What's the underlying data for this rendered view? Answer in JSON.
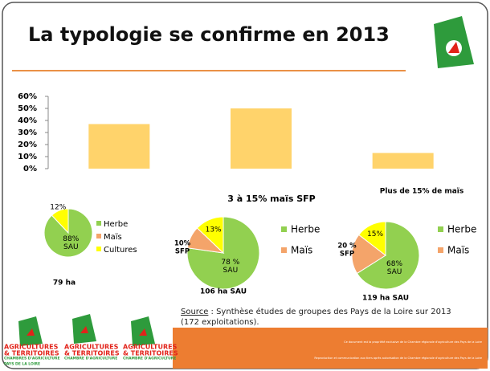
{
  "header": {
    "title": "La typologie se confirme en 2013"
  },
  "chart_data": [
    {
      "type": "bar",
      "values": [
        37,
        50,
        13
      ],
      "color": "#ffd36b",
      "ylim": [
        0,
        60
      ],
      "yticks": [
        {
          "value": 0,
          "label": "0%"
        },
        {
          "value": 10,
          "label": "10%"
        },
        {
          "value": 20,
          "label": "20%"
        },
        {
          "value": 30,
          "label": "30%"
        },
        {
          "value": 40,
          "label": "40%"
        },
        {
          "value": 50,
          "label": "50%"
        },
        {
          "value": 60,
          "label": "60%"
        }
      ]
    },
    {
      "type": "pie",
      "caption": "79 ha",
      "legend": [
        "Herbe",
        "Maïs",
        "Cultures"
      ],
      "values": [
        88,
        null,
        12
      ],
      "value_labels": [
        "88%",
        null,
        "12%"
      ],
      "value_notes": [
        "SAU",
        null,
        null
      ],
      "colors": [
        "#92d050",
        "#f4a46a",
        "#ffff00"
      ]
    },
    {
      "type": "pie",
      "title": "3 à 15% maïs SFP",
      "caption": "106 ha SAU",
      "legend": [
        "Herbe",
        "Maïs"
      ],
      "values": [
        78,
        10,
        13
      ],
      "value_labels": [
        "78 %",
        "10%",
        "13%"
      ],
      "value_notes": [
        "SAU",
        "SFP",
        null
      ],
      "colors": [
        "#92d050",
        "#f4a46a",
        "#ffff00"
      ]
    },
    {
      "type": "pie",
      "title": "Plus de 15% de maïs",
      "caption": "119 ha SAU",
      "legend": [
        "Herbe",
        "Maïs"
      ],
      "values": [
        68,
        20,
        15
      ],
      "value_labels": [
        "68%",
        "20 %",
        "15%"
      ],
      "value_notes": [
        "SAU",
        "SFP",
        null
      ],
      "colors": [
        "#92d050",
        "#f4a46a",
        "#ffff00"
      ]
    }
  ],
  "source": {
    "label": "Source",
    "text": " : Synthèse études de groupes des Pays de la Loire sur 2013",
    "text2": "(172 exploitations)."
  },
  "footer": {
    "line1": "Ce document est la propriété exclusive de la Chambre régionale d'agriculture des Pays de la Loire",
    "line2": "Reproduction et communication aux tiers après autorisation de la Chambre régionale d'agriculture des Pays de la Loire"
  },
  "logos": [
    {
      "line1": "AGRICULTURES",
      "line2": "& TERRITOIRES",
      "line3": "CHAMBRES D'AGRICULTURE",
      "line4": "PAYS DE LA LOIRE"
    },
    {
      "line1": "AGRICULTURES",
      "line2": "& TERRITOIRES",
      "line3": "CHAMBRE D'AGRICULTURE"
    },
    {
      "line1": "AGRICULTURES",
      "line2": "& TERRITOIRES",
      "line3": "CHAMBRE D'AGRICULTURE"
    }
  ]
}
